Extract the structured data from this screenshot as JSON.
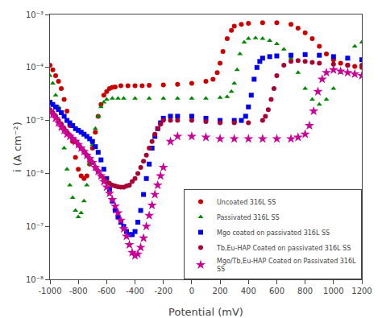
{
  "chart_data": {
    "type": "scatter",
    "xlabel": "Potential (mV)",
    "ylabel": "i (A cm⁻²)",
    "log": "y",
    "grid": false,
    "legend": "lower right",
    "xlim": [
      -1000,
      1200
    ],
    "xticks": [
      -1000,
      -800,
      -600,
      -400,
      -200,
      0,
      200,
      400,
      600,
      800,
      1000,
      1200
    ],
    "ylim": [
      1e-08,
      0.001
    ],
    "yticks": [
      {
        "value": 1e-08,
        "label": "10⁻⁸"
      },
      {
        "value": 1e-07,
        "label": "10⁻⁷"
      },
      {
        "value": 1e-06,
        "label": "10⁻⁶"
      },
      {
        "value": 1e-05,
        "label": "10⁻⁵"
      },
      {
        "value": 0.0001,
        "label": "10⁻⁴"
      },
      {
        "value": 0.001,
        "label": "10⁻³"
      }
    ],
    "series": [
      {
        "name": "Uncoated 316L SS",
        "color": "#cc0000",
        "marker": "circle",
        "x": [
          -1000,
          -980,
          -960,
          -940,
          -920,
          -900,
          -880,
          -860,
          -840,
          -820,
          -800,
          -780,
          -760,
          -740,
          -720,
          -700,
          -680,
          -660,
          -640,
          -620,
          -600,
          -580,
          -560,
          -540,
          -500,
          -450,
          -400,
          -350,
          -300,
          -200,
          -100,
          0,
          100,
          150,
          180,
          200,
          220,
          250,
          280,
          300,
          350,
          400,
          500,
          600,
          700,
          750,
          800,
          850,
          900,
          950,
          1000,
          1050,
          1100,
          1150,
          1200
        ],
        "values": [
          0.00011,
          9e-05,
          7e-05,
          5.5e-05,
          4e-05,
          2.5e-05,
          1.5e-05,
          8e-06,
          4e-06,
          2e-06,
          1.2e-06,
          9e-07,
          8e-07,
          9e-07,
          1.5e-06,
          3e-06,
          6e-06,
          1.2e-05,
          2e-05,
          3e-05,
          3.5e-05,
          4e-05,
          4.2e-05,
          4.3e-05,
          4.5e-05,
          4.5e-05,
          4.5e-05,
          4.5e-05,
          4.6e-05,
          4.7e-05,
          4.8e-05,
          5e-05,
          5.5e-05,
          6e-05,
          8e-05,
          0.00012,
          0.0002,
          0.00035,
          0.0005,
          0.0006,
          0.00065,
          0.00068,
          0.0007,
          0.0007,
          0.00065,
          0.00055,
          0.00045,
          0.00035,
          0.00025,
          0.00018,
          0.00014,
          0.00012,
          0.00011,
          0.000105,
          0.0001
        ]
      },
      {
        "name": "Passivated 316L SS",
        "color": "#008800",
        "marker": "triangle-up",
        "x": [
          -1000,
          -980,
          -960,
          -940,
          -920,
          -900,
          -880,
          -860,
          -840,
          -820,
          -800,
          -780,
          -760,
          -740,
          -720,
          -700,
          -680,
          -660,
          -640,
          -620,
          -600,
          -560,
          -520,
          -480,
          -400,
          -300,
          -200,
          -100,
          0,
          100,
          200,
          250,
          280,
          300,
          320,
          340,
          370,
          400,
          450,
          500,
          550,
          600,
          650,
          700,
          750,
          800,
          850,
          900,
          950,
          1000,
          1050,
          1100,
          1150,
          1200
        ],
        "values": [
          7e-05,
          5e-05,
          3e-05,
          1.8e-05,
          8e-06,
          3e-06,
          1.2e-06,
          6e-07,
          3.5e-07,
          2e-07,
          1.5e-07,
          1.8e-07,
          3e-07,
          6e-07,
          1.5e-06,
          3.5e-06,
          7e-06,
          1.2e-05,
          1.8e-05,
          2.2e-05,
          2.5e-05,
          2.6e-05,
          2.6e-05,
          2.6e-05,
          2.6e-05,
          2.6e-05,
          2.6e-05,
          2.6e-05,
          2.6e-05,
          2.6e-05,
          2.7e-05,
          2.8e-05,
          3.5e-05,
          5e-05,
          9e-05,
          0.00018,
          0.0003,
          0.00035,
          0.00036,
          0.00035,
          0.00032,
          0.00028,
          0.00022,
          0.00015,
          8e-05,
          4e-05,
          2.5e-05,
          2e-05,
          2.5e-05,
          4e-05,
          8e-05,
          0.00015,
          0.00025,
          0.0003
        ]
      },
      {
        "name": "Mgo coated on passivated 316L SS",
        "color": "#0000ee",
        "marker": "square",
        "x": [
          -1000,
          -980,
          -960,
          -940,
          -920,
          -900,
          -880,
          -860,
          -840,
          -820,
          -800,
          -780,
          -760,
          -740,
          -720,
          -700,
          -680,
          -660,
          -640,
          -620,
          -600,
          -580,
          -560,
          -540,
          -520,
          -500,
          -480,
          -460,
          -440,
          -420,
          -400,
          -380,
          -360,
          -340,
          -320,
          -300,
          -280,
          -260,
          -240,
          -220,
          -200,
          -150,
          -100,
          0,
          100,
          200,
          300,
          350,
          380,
          400,
          420,
          440,
          460,
          480,
          500,
          550,
          600,
          700,
          800,
          900,
          1000,
          1100,
          1200
        ],
        "values": [
          2.2e-05,
          2e-05,
          1.8e-05,
          1.6e-05,
          1.4e-05,
          1.2e-05,
          1e-05,
          9e-06,
          8e-06,
          7e-06,
          6.5e-06,
          6e-06,
          5.5e-06,
          5e-06,
          4.5e-06,
          4e-06,
          3.2e-06,
          2.5e-06,
          1.8e-06,
          1.2e-06,
          8e-07,
          5e-07,
          3e-07,
          2e-07,
          1.5e-07,
          1.2e-07,
          1e-07,
          8e-08,
          7e-08,
          7e-08,
          8e-08,
          1.2e-07,
          2e-07,
          4e-07,
          8e-07,
          1.5e-06,
          3e-06,
          5e-06,
          7e-06,
          9e-06,
          1.1e-05,
          1.2e-05,
          1.2e-05,
          1.2e-05,
          1.1e-05,
          1e-05,
          1e-05,
          1e-05,
          1.2e-05,
          1.8e-05,
          3e-05,
          6e-05,
          0.0001,
          0.00013,
          0.00015,
          0.00016,
          0.000165,
          0.00017,
          0.000175,
          0.00017,
          0.00016,
          0.00015,
          0.00014
        ]
      },
      {
        "name": "Tb,Eu-HAP Coated on passivated 316L SS",
        "color": "#aa0033",
        "marker": "circle",
        "x": [
          -1000,
          -980,
          -960,
          -940,
          -920,
          -900,
          -880,
          -860,
          -840,
          -820,
          -800,
          -780,
          -760,
          -740,
          -720,
          -700,
          -680,
          -660,
          -640,
          -620,
          -600,
          -580,
          -560,
          -540,
          -520,
          -500,
          -480,
          -460,
          -440,
          -420,
          -400,
          -380,
          -360,
          -340,
          -320,
          -300,
          -280,
          -260,
          -240,
          -220,
          -200,
          -150,
          -100,
          0,
          100,
          200,
          300,
          400,
          500,
          520,
          540,
          560,
          580,
          600,
          650,
          700,
          750,
          800,
          850,
          900,
          1000,
          1100,
          1200
        ],
        "values": [
          1.6e-05,
          1.4e-05,
          1.2e-05,
          1e-05,
          8.5e-06,
          7e-06,
          6e-06,
          5.2e-06,
          4.5e-06,
          4e-06,
          3.5e-06,
          3e-06,
          2.6e-06,
          2.2e-06,
          1.9e-06,
          1.6e-06,
          1.3e-06,
          1.1e-06,
          9e-07,
          8e-07,
          7e-07,
          6.5e-07,
          6e-07,
          5.8e-07,
          5.6e-07,
          5.5e-07,
          5.5e-07,
          5.8e-07,
          6e-07,
          7e-07,
          8e-07,
          1e-06,
          1.3e-06,
          1.7e-06,
          2.2e-06,
          3e-06,
          4e-06,
          5.5e-06,
          7e-06,
          8.5e-06,
          1e-05,
          1e-05,
          1e-05,
          1e-05,
          9.5e-06,
          9e-06,
          9e-06,
          9e-06,
          1e-05,
          1.2e-05,
          1.6e-05,
          2.5e-05,
          4e-05,
          7e-05,
          0.00011,
          0.00013,
          0.000135,
          0.00013,
          0.000125,
          0.00012,
          0.000115,
          0.00011,
          0.00011
        ]
      },
      {
        "name": "Mgo/Tb,Eu-HAP Coated on Passivated 316L\nSS",
        "color": "#cc0099",
        "marker": "star",
        "x": [
          -1000,
          -980,
          -960,
          -940,
          -920,
          -900,
          -880,
          -860,
          -840,
          -820,
          -800,
          -780,
          -760,
          -740,
          -720,
          -700,
          -680,
          -660,
          -640,
          -620,
          -600,
          -580,
          -560,
          -540,
          -520,
          -500,
          -480,
          -460,
          -440,
          -420,
          -400,
          -380,
          -360,
          -340,
          -320,
          -300,
          -280,
          -260,
          -240,
          -220,
          -200,
          -150,
          -100,
          0,
          100,
          200,
          300,
          400,
          500,
          600,
          700,
          750,
          800,
          830,
          860,
          890,
          920,
          950,
          1000,
          1050,
          1100,
          1150,
          1200
        ],
        "values": [
          1.5e-05,
          1.3e-05,
          1.1e-05,
          9e-06,
          7.5e-06,
          6.5e-06,
          5.5e-06,
          5e-06,
          4.5e-06,
          4e-06,
          3.5e-06,
          3e-06,
          2.6e-06,
          2.2e-06,
          1.9e-06,
          1.6e-06,
          1.3e-06,
          1.1e-06,
          9e-07,
          7e-07,
          5.5e-07,
          4.2e-07,
          3.2e-07,
          2.4e-07,
          1.8e-07,
          1.3e-07,
          9e-08,
          6.5e-08,
          4.5e-08,
          3.2e-08,
          2.8e-08,
          3e-08,
          4e-08,
          6e-08,
          1e-07,
          1.6e-07,
          2.5e-07,
          4e-07,
          6e-07,
          9e-07,
          1.3e-06,
          4e-06,
          5e-06,
          5e-06,
          4.8e-06,
          4.5e-06,
          4.5e-06,
          4.5e-06,
          4.5e-06,
          4.5e-06,
          4.5e-06,
          4.8e-06,
          5.5e-06,
          8e-06,
          1.5e-05,
          3.5e-05,
          6e-05,
          8e-05,
          9e-05,
          8.5e-05,
          8e-05,
          7.5e-05,
          7e-05
        ]
      }
    ]
  }
}
